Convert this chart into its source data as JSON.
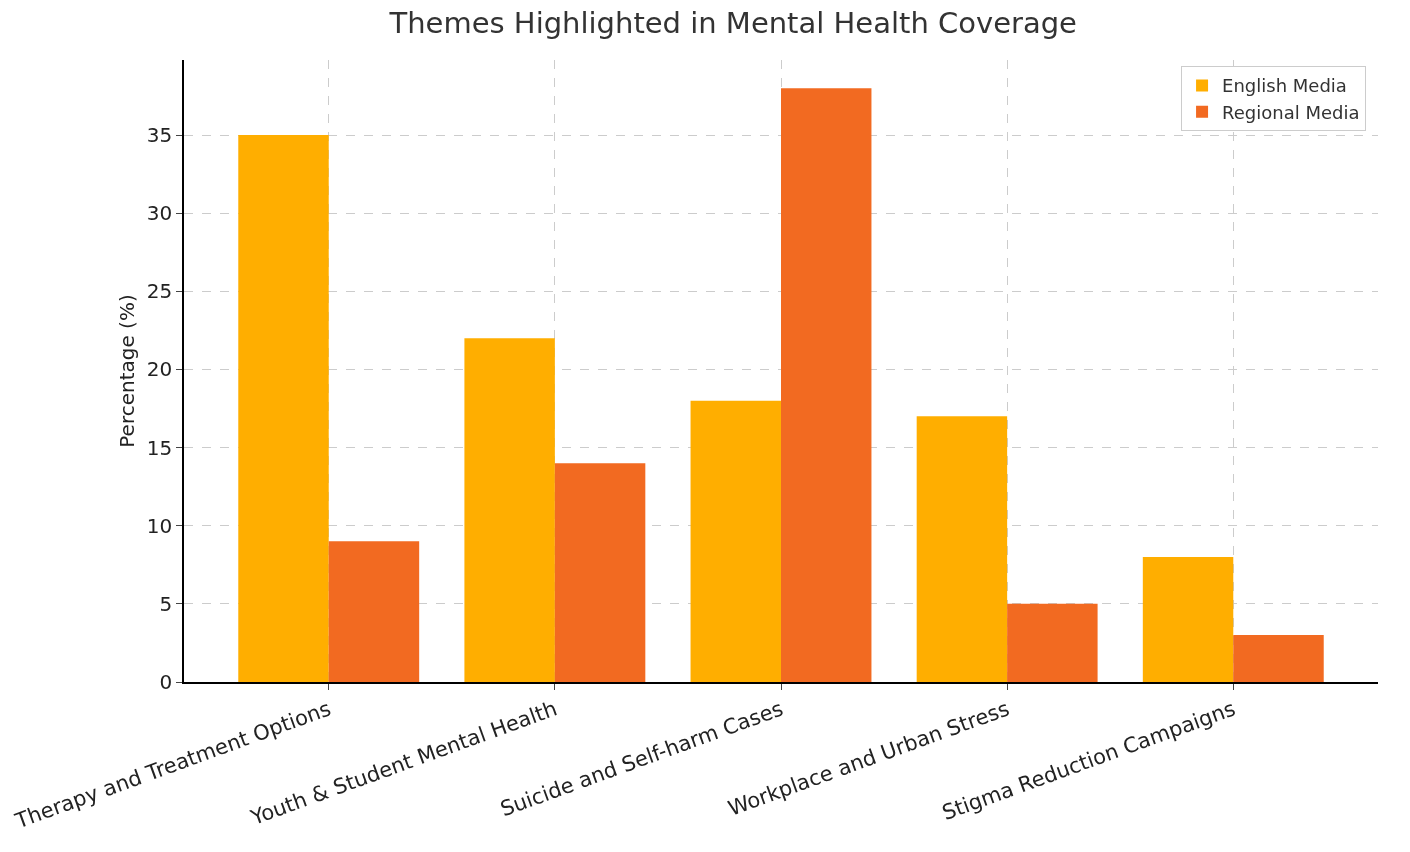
{
  "chart_data": {
    "type": "bar",
    "title": "Themes Highlighted in Mental Health Coverage",
    "ylabel": "Percentage (%)",
    "categories": [
      "Therapy and Treatment Options",
      "Youth & Student Mental Health",
      "Suicide and Self-harm Cases",
      "Workplace and Urban Stress",
      "Stigma Reduction Campaigns"
    ],
    "series": [
      {
        "name": "English Media",
        "color": "#ffae00",
        "values": [
          35,
          22,
          18,
          17,
          8
        ]
      },
      {
        "name": "Regional Media",
        "color": "#f26a21",
        "values": [
          9,
          14,
          38,
          5,
          3
        ]
      }
    ],
    "ylim": [
      0,
      39.8
    ],
    "yticks": [
      0,
      5,
      10,
      15,
      20,
      25,
      30,
      35
    ],
    "grid": true,
    "legend": "top right"
  }
}
